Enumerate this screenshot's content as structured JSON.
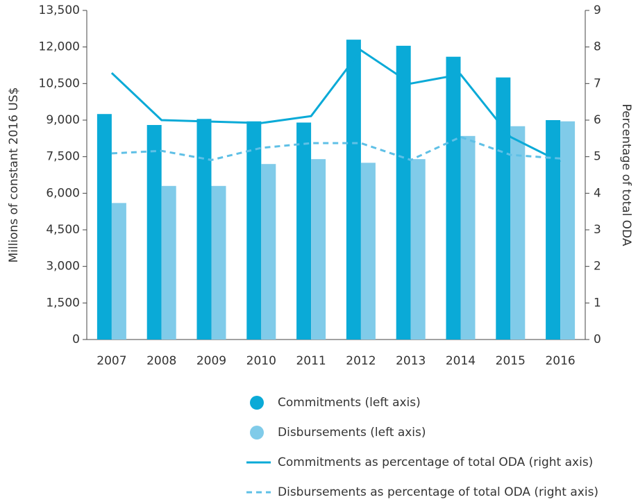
{
  "chart_data": {
    "type": "bar",
    "categories": [
      "2007",
      "2008",
      "2009",
      "2010",
      "2011",
      "2012",
      "2013",
      "2014",
      "2015",
      "2016"
    ],
    "ylabel": "Millions of constant 2016 US$",
    "y2label": "Percentage of total ODA",
    "ylim": [
      0,
      13500
    ],
    "yticks": [
      0,
      {
        "value": 1500,
        "label": "1,500"
      },
      {
        "value": 3000,
        "label": "3,000"
      },
      {
        "value": 4500,
        "label": "4,500"
      },
      {
        "value": 6000,
        "label": "6,000"
      },
      {
        "value": 7500,
        "label": "7,500"
      },
      {
        "value": 9000,
        "label": "9,000"
      },
      {
        "value": 10500,
        "label": "10,500"
      },
      {
        "value": 12000,
        "label": "12,000"
      },
      {
        "value": 13500,
        "label": "13,500"
      }
    ],
    "y2lim": [
      0,
      9
    ],
    "y2ticks": [
      0,
      1,
      2,
      3,
      4,
      5,
      6,
      7,
      8,
      9
    ],
    "grid": false,
    "legend": "bottom",
    "series": [
      {
        "name": "Commitments (left axis)",
        "type": "bar",
        "color": "#0aaad7",
        "values": [
          9250,
          8800,
          9050,
          8950,
          8900,
          12300,
          12050,
          11600,
          10750,
          9000
        ]
      },
      {
        "name": "Disbursements (left axis)",
        "type": "bar",
        "color": "#80cbe9",
        "values": [
          5600,
          6300,
          6300,
          7200,
          7400,
          7250,
          7400,
          8350,
          8750,
          8950
        ]
      },
      {
        "name": "Commitments as percentage of total ODA (right axis)",
        "type": "line",
        "axis": "y2",
        "style": "solid",
        "color": "#0aaad7",
        "values": [
          7.29,
          6.0,
          5.96,
          5.92,
          6.11,
          7.91,
          7.0,
          7.25,
          5.54,
          4.86
        ]
      },
      {
        "name": "Disbursements as percentage of total ODA (right axis)",
        "type": "line",
        "axis": "y2",
        "style": "dashed",
        "color": "#5fc0e6",
        "values": [
          5.09,
          5.16,
          4.91,
          5.24,
          5.37,
          5.37,
          4.91,
          5.54,
          5.05,
          4.95
        ]
      }
    ]
  }
}
